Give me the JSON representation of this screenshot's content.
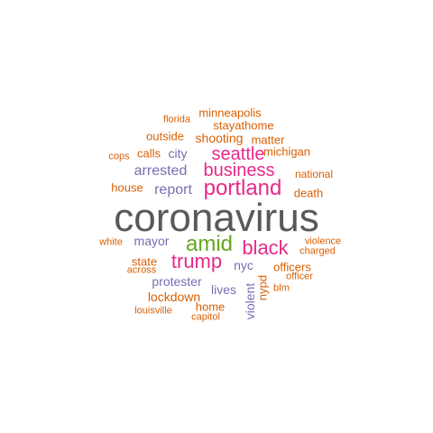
{
  "colors": {
    "gray": "#595959",
    "orange": "#d95f02",
    "purple": "#7570b3",
    "magenta": "#e7298a",
    "green": "#66a61e"
  },
  "words": [
    {
      "text": "coronavirus",
      "color": "gray"
    },
    {
      "text": "portland",
      "color": "magenta"
    },
    {
      "text": "business",
      "color": "magenta"
    },
    {
      "text": "seattle",
      "color": "magenta"
    },
    {
      "text": "amid",
      "color": "green"
    },
    {
      "text": "black",
      "color": "magenta"
    },
    {
      "text": "trump",
      "color": "magenta"
    },
    {
      "text": "arrested",
      "color": "purple"
    },
    {
      "text": "report",
      "color": "purple"
    },
    {
      "text": "mayor",
      "color": "purple"
    },
    {
      "text": "city",
      "color": "purple"
    },
    {
      "text": "nyc",
      "color": "purple"
    },
    {
      "text": "protester",
      "color": "purple"
    },
    {
      "text": "lives",
      "color": "purple"
    },
    {
      "text": "violent",
      "color": "purple"
    },
    {
      "text": "lockdown",
      "color": "orange"
    },
    {
      "text": "shooting",
      "color": "orange"
    },
    {
      "text": "stayathome",
      "color": "orange"
    },
    {
      "text": "minneapolis",
      "color": "orange"
    },
    {
      "text": "outside",
      "color": "orange"
    },
    {
      "text": "matter",
      "color": "orange"
    },
    {
      "text": "calls",
      "color": "orange"
    },
    {
      "text": "michigan",
      "color": "orange"
    },
    {
      "text": "florida",
      "color": "orange"
    },
    {
      "text": "cops",
      "color": "orange"
    },
    {
      "text": "national",
      "color": "orange"
    },
    {
      "text": "house",
      "color": "orange"
    },
    {
      "text": "death",
      "color": "orange"
    },
    {
      "text": "white",
      "color": "orange"
    },
    {
      "text": "violence",
      "color": "orange"
    },
    {
      "text": "charged",
      "color": "orange"
    },
    {
      "text": "state",
      "color": "orange"
    },
    {
      "text": "officers",
      "color": "orange"
    },
    {
      "text": "across",
      "color": "orange"
    },
    {
      "text": "officer",
      "color": "orange"
    },
    {
      "text": "blm",
      "color": "orange"
    },
    {
      "text": "nypd",
      "color": "orange"
    },
    {
      "text": "home",
      "color": "orange"
    },
    {
      "text": "louisville",
      "color": "orange"
    },
    {
      "text": "capitol",
      "color": "orange"
    }
  ]
}
